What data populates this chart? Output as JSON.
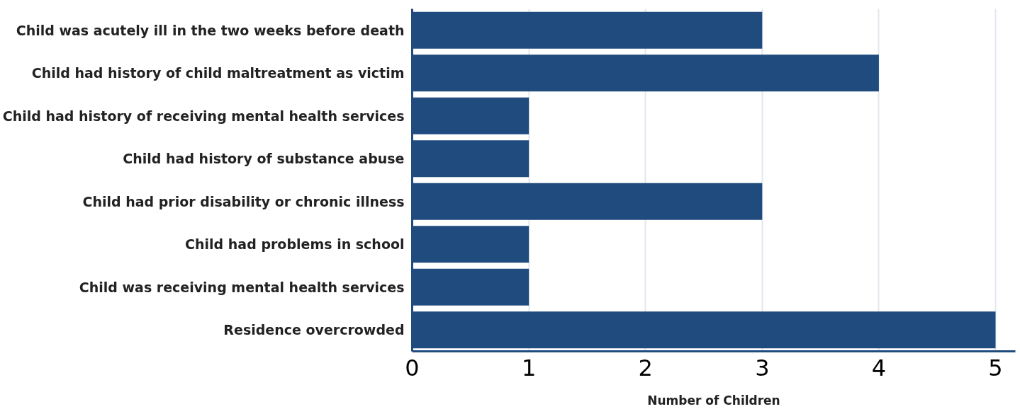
{
  "chart_data": {
    "type": "bar",
    "orientation": "horizontal",
    "xlabel": "Number of Children",
    "categories": [
      "Child was acutely ill in the two weeks before death",
      "Child had history of child maltreatment as victim",
      "Child had history of receiving mental health services",
      "Child had history of substance abuse",
      "Child had prior disability or chronic illness",
      "Child had problems in school",
      "Child was receiving mental health services",
      "Residence overcrowded"
    ],
    "values": [
      3,
      4,
      1,
      1,
      3,
      1,
      1,
      5
    ],
    "color": "#1f4b7e",
    "xlim": [
      0,
      5.17
    ],
    "xticks": [
      0,
      1,
      2,
      3,
      4,
      5
    ],
    "grid": "x"
  }
}
